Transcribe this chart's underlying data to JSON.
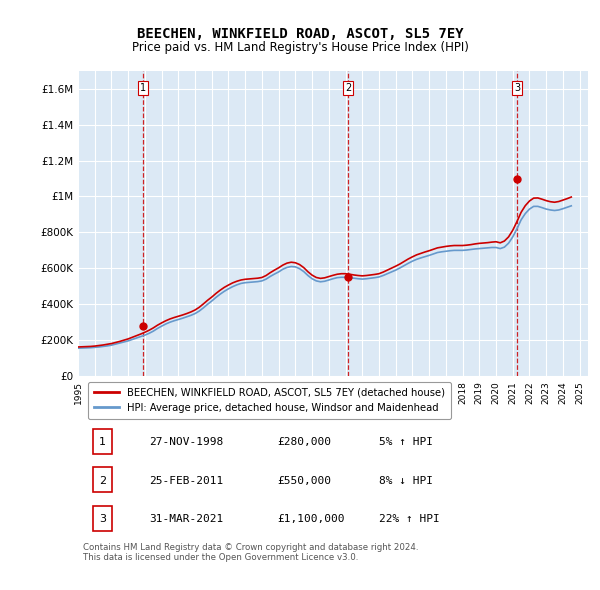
{
  "title": "BEECHEN, WINKFIELD ROAD, ASCOT, SL5 7EY",
  "subtitle": "Price paid vs. HM Land Registry's House Price Index (HPI)",
  "background_color": "#dce9f5",
  "plot_bg_color": "#dce9f5",
  "ylim": [
    0,
    1700000
  ],
  "yticks": [
    0,
    200000,
    400000,
    600000,
    800000,
    1000000,
    1200000,
    1400000,
    1600000
  ],
  "ytick_labels": [
    "£0",
    "£200K",
    "£400K",
    "£600K",
    "£800K",
    "£1M",
    "£1.2M",
    "£1.4M",
    "£1.6M"
  ],
  "xlim_start": 1995.0,
  "xlim_end": 2025.5,
  "xtick_years": [
    1995,
    1996,
    1997,
    1998,
    1999,
    2000,
    2001,
    2002,
    2003,
    2004,
    2005,
    2006,
    2007,
    2008,
    2009,
    2010,
    2011,
    2012,
    2013,
    2014,
    2015,
    2016,
    2017,
    2018,
    2019,
    2020,
    2021,
    2022,
    2023,
    2024,
    2025
  ],
  "sale_dates": [
    1998.9,
    2011.15,
    2021.25
  ],
  "sale_prices": [
    280000,
    550000,
    1100000
  ],
  "sale_labels": [
    "1",
    "2",
    "3"
  ],
  "vline_color": "#cc0000",
  "vline_style": "--",
  "dot_color": "#cc0000",
  "hpi_color": "#6699cc",
  "price_color": "#cc0000",
  "legend_label_price": "BEECHEN, WINKFIELD ROAD, ASCOT, SL5 7EY (detached house)",
  "legend_label_hpi": "HPI: Average price, detached house, Windsor and Maidenhead",
  "table_rows": [
    {
      "num": "1",
      "date": "27-NOV-1998",
      "price": "£280,000",
      "hpi": "5% ↑ HPI"
    },
    {
      "num": "2",
      "date": "25-FEB-2011",
      "price": "£550,000",
      "hpi": "8% ↓ HPI"
    },
    {
      "num": "3",
      "date": "31-MAR-2021",
      "price": "£1,100,000",
      "hpi": "22% ↑ HPI"
    }
  ],
  "footer": "Contains HM Land Registry data © Crown copyright and database right 2024.\nThis data is licensed under the Open Government Licence v3.0.",
  "hpi_data_x": [
    1995.0,
    1995.25,
    1995.5,
    1995.75,
    1996.0,
    1996.25,
    1996.5,
    1996.75,
    1997.0,
    1997.25,
    1997.5,
    1997.75,
    1998.0,
    1998.25,
    1998.5,
    1998.75,
    1999.0,
    1999.25,
    1999.5,
    1999.75,
    2000.0,
    2000.25,
    2000.5,
    2000.75,
    2001.0,
    2001.25,
    2001.5,
    2001.75,
    2002.0,
    2002.25,
    2002.5,
    2002.75,
    2003.0,
    2003.25,
    2003.5,
    2003.75,
    2004.0,
    2004.25,
    2004.5,
    2004.75,
    2005.0,
    2005.25,
    2005.5,
    2005.75,
    2006.0,
    2006.25,
    2006.5,
    2006.75,
    2007.0,
    2007.25,
    2007.5,
    2007.75,
    2008.0,
    2008.25,
    2008.5,
    2008.75,
    2009.0,
    2009.25,
    2009.5,
    2009.75,
    2010.0,
    2010.25,
    2010.5,
    2010.75,
    2011.0,
    2011.25,
    2011.5,
    2011.75,
    2012.0,
    2012.25,
    2012.5,
    2012.75,
    2013.0,
    2013.25,
    2013.5,
    2013.75,
    2014.0,
    2014.25,
    2014.5,
    2014.75,
    2015.0,
    2015.25,
    2015.5,
    2015.75,
    2016.0,
    2016.25,
    2016.5,
    2016.75,
    2017.0,
    2017.25,
    2017.5,
    2017.75,
    2018.0,
    2018.25,
    2018.5,
    2018.75,
    2019.0,
    2019.25,
    2019.5,
    2019.75,
    2020.0,
    2020.25,
    2020.5,
    2020.75,
    2021.0,
    2021.25,
    2021.5,
    2021.75,
    2022.0,
    2022.25,
    2022.5,
    2022.75,
    2023.0,
    2023.25,
    2023.5,
    2023.75,
    2024.0,
    2024.25,
    2024.5
  ],
  "hpi_data_y": [
    155000,
    156000,
    157000,
    158000,
    160000,
    162000,
    165000,
    168000,
    172000,
    178000,
    184000,
    190000,
    196000,
    204000,
    212000,
    220000,
    228000,
    238000,
    250000,
    265000,
    278000,
    290000,
    300000,
    308000,
    315000,
    322000,
    330000,
    338000,
    348000,
    362000,
    380000,
    400000,
    418000,
    438000,
    456000,
    472000,
    486000,
    498000,
    508000,
    516000,
    520000,
    522000,
    524000,
    526000,
    530000,
    540000,
    555000,
    568000,
    580000,
    595000,
    605000,
    610000,
    608000,
    598000,
    582000,
    560000,
    542000,
    530000,
    525000,
    528000,
    535000,
    542000,
    548000,
    550000,
    550000,
    548000,
    545000,
    542000,
    540000,
    542000,
    545000,
    548000,
    552000,
    560000,
    570000,
    580000,
    590000,
    602000,
    615000,
    628000,
    640000,
    650000,
    658000,
    665000,
    672000,
    680000,
    688000,
    692000,
    695000,
    698000,
    700000,
    700000,
    700000,
    702000,
    705000,
    708000,
    710000,
    712000,
    714000,
    716000,
    716000,
    710000,
    718000,
    740000,
    775000,
    820000,
    870000,
    905000,
    930000,
    945000,
    945000,
    938000,
    930000,
    925000,
    922000,
    925000,
    932000,
    940000,
    948000
  ],
  "price_data_x": [
    1995.0,
    1995.25,
    1995.5,
    1995.75,
    1996.0,
    1996.25,
    1996.5,
    1996.75,
    1997.0,
    1997.25,
    1997.5,
    1997.75,
    1998.0,
    1998.25,
    1998.5,
    1998.75,
    1999.0,
    1999.25,
    1999.5,
    1999.75,
    2000.0,
    2000.25,
    2000.5,
    2000.75,
    2001.0,
    2001.25,
    2001.5,
    2001.75,
    2002.0,
    2002.25,
    2002.5,
    2002.75,
    2003.0,
    2003.25,
    2003.5,
    2003.75,
    2004.0,
    2004.25,
    2004.5,
    2004.75,
    2005.0,
    2005.25,
    2005.5,
    2005.75,
    2006.0,
    2006.25,
    2006.5,
    2006.75,
    2007.0,
    2007.25,
    2007.5,
    2007.75,
    2008.0,
    2008.25,
    2008.5,
    2008.75,
    2009.0,
    2009.25,
    2009.5,
    2009.75,
    2010.0,
    2010.25,
    2010.5,
    2010.75,
    2011.0,
    2011.25,
    2011.5,
    2011.75,
    2012.0,
    2012.25,
    2012.5,
    2012.75,
    2013.0,
    2013.25,
    2013.5,
    2013.75,
    2014.0,
    2014.25,
    2014.5,
    2014.75,
    2015.0,
    2015.25,
    2015.5,
    2015.75,
    2016.0,
    2016.25,
    2016.5,
    2016.75,
    2017.0,
    2017.25,
    2017.5,
    2017.75,
    2018.0,
    2018.25,
    2018.5,
    2018.75,
    2019.0,
    2019.25,
    2019.5,
    2019.75,
    2020.0,
    2020.25,
    2020.5,
    2020.75,
    2021.0,
    2021.25,
    2021.5,
    2021.75,
    2022.0,
    2022.25,
    2022.5,
    2022.75,
    2023.0,
    2023.25,
    2023.5,
    2023.75,
    2024.0,
    2024.25,
    2024.5
  ],
  "price_data_y": [
    162000,
    163000,
    164000,
    165000,
    167000,
    170000,
    173000,
    177000,
    181000,
    187000,
    193000,
    200000,
    207000,
    216000,
    225000,
    234000,
    244000,
    255000,
    268000,
    283000,
    296000,
    308000,
    318000,
    326000,
    333000,
    340000,
    348000,
    357000,
    368000,
    383000,
    402000,
    422000,
    440000,
    460000,
    478000,
    494000,
    507000,
    519000,
    528000,
    535000,
    539000,
    541000,
    543000,
    545000,
    549000,
    560000,
    576000,
    590000,
    603000,
    618000,
    629000,
    634000,
    631000,
    621000,
    604000,
    581000,
    562000,
    549000,
    544000,
    547000,
    554000,
    561000,
    567000,
    570000,
    570000,
    567000,
    563000,
    560000,
    558000,
    560000,
    563000,
    566000,
    570000,
    579000,
    590000,
    601000,
    612000,
    624000,
    638000,
    652000,
    664000,
    675000,
    683000,
    691000,
    698000,
    706000,
    714000,
    718000,
    722000,
    725000,
    727000,
    727000,
    727000,
    729000,
    732000,
    736000,
    739000,
    741000,
    743000,
    746000,
    748000,
    742000,
    752000,
    775000,
    812000,
    860000,
    912000,
    949000,
    975000,
    991000,
    992000,
    985000,
    977000,
    971000,
    968000,
    972000,
    980000,
    988000,
    997000
  ]
}
